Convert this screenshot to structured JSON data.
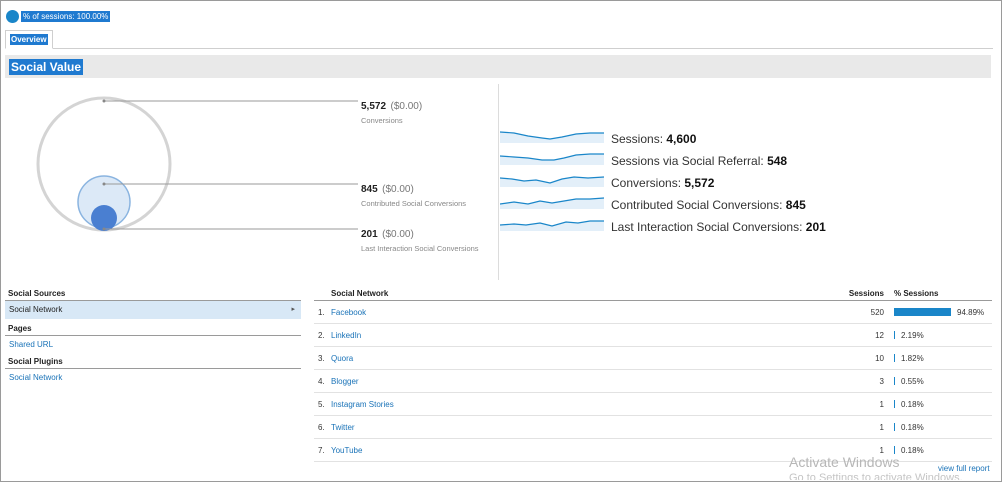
{
  "segment": {
    "label": "% of sessions: 100.00%",
    "color": "#1a86c9"
  },
  "tabs": [
    {
      "label": "Overview"
    }
  ],
  "section": {
    "title": "Social Value"
  },
  "metrics": [
    {
      "value": "5,572",
      "money": "($0.00)",
      "caption": "Conversions"
    },
    {
      "value": "845",
      "money": "($0.00)",
      "caption": "Contributed Social Conversions"
    },
    {
      "value": "201",
      "money": "($0.00)",
      "caption": "Last Interaction Social Conversions"
    }
  ],
  "sparklines": [
    {
      "label": "Sessions:",
      "value": "4,600"
    },
    {
      "label": "Sessions via Social Referral:",
      "value": "548"
    },
    {
      "label": "Conversions:",
      "value": "5,572"
    },
    {
      "label": "Contributed Social Conversions:",
      "value": "845"
    },
    {
      "label": "Last Interaction Social Conversions:",
      "value": "201"
    }
  ],
  "leftnav": {
    "social_sources": {
      "heading": "Social Sources",
      "items": [
        {
          "label": "Social Network",
          "active": true
        }
      ]
    },
    "pages": {
      "heading": "Pages",
      "items": [
        {
          "label": "Shared URL"
        }
      ]
    },
    "social_plugins": {
      "heading": "Social Plugins",
      "items": [
        {
          "label": "Social Network"
        }
      ]
    }
  },
  "table": {
    "headers": {
      "network": "Social Network",
      "sessions": "Sessions",
      "pct": "% Sessions"
    },
    "rows": [
      {
        "idx": "1.",
        "name": "Facebook",
        "sessions": "520",
        "pct": "94.89%",
        "share": 0.9489
      },
      {
        "idx": "2.",
        "name": "LinkedIn",
        "sessions": "12",
        "pct": "2.19%",
        "share": 0.0219
      },
      {
        "idx": "3.",
        "name": "Quora",
        "sessions": "10",
        "pct": "1.82%",
        "share": 0.0182
      },
      {
        "idx": "4.",
        "name": "Blogger",
        "sessions": "3",
        "pct": "0.55%",
        "share": 0.0055
      },
      {
        "idx": "5.",
        "name": "Instagram Stories",
        "sessions": "1",
        "pct": "0.18%",
        "share": 0.0018
      },
      {
        "idx": "6.",
        "name": "Twitter",
        "sessions": "1",
        "pct": "0.18%",
        "share": 0.0018
      },
      {
        "idx": "7.",
        "name": "YouTube",
        "sessions": "1",
        "pct": "0.18%",
        "share": 0.0018
      }
    ]
  },
  "footer": {
    "view_full_report": "view full report"
  },
  "watermark": {
    "line1": "Activate Windows",
    "line2": "Go to Settings to activate Windows."
  },
  "colors": {
    "accent": "#1a86c9",
    "link": "#1a73b8",
    "band": "#e9e9e9"
  }
}
